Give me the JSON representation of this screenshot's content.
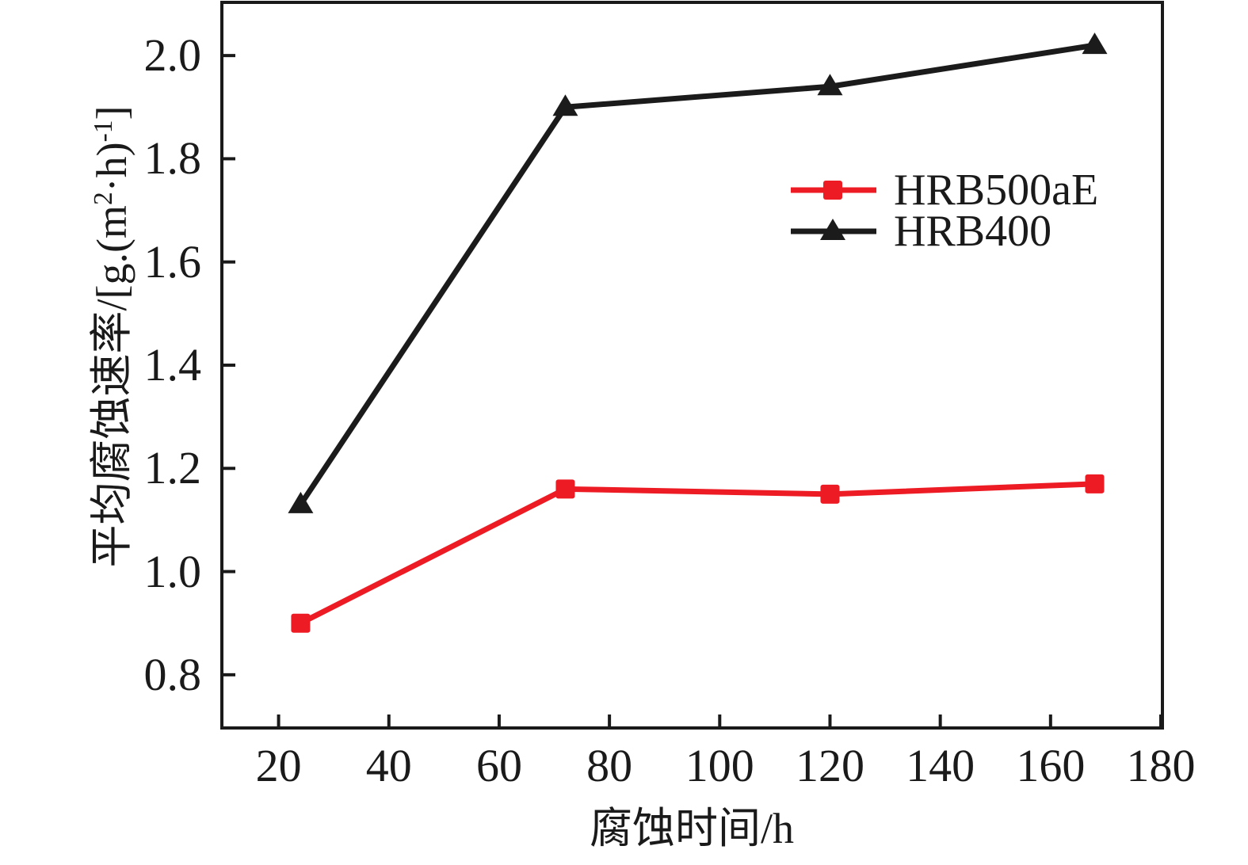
{
  "figure": {
    "background_color": "#ffffff",
    "axis_color": "#1a1a1a"
  },
  "chart_data": {
    "type": "line",
    "title": "",
    "xlabel": "腐蚀时间/h",
    "ylabel": "平均腐蚀速率/[g.(m²·h)⁻¹]",
    "ylabel_parts": [
      "平均腐蚀速率/[g.(m",
      "2",
      "·h)",
      "-1",
      "]"
    ],
    "x": [
      24,
      72,
      120,
      168
    ],
    "series": [
      {
        "name": "HRB500aE",
        "color": "#ed1c24",
        "marker": "square",
        "values": [
          0.9,
          1.16,
          1.15,
          1.17
        ]
      },
      {
        "name": "HRB400",
        "color": "#1b1b1b",
        "marker": "triangle",
        "values": [
          1.13,
          1.9,
          1.94,
          2.02
        ]
      }
    ],
    "xlim": [
      10,
      180
    ],
    "ylim": [
      0.7,
      2.1
    ],
    "x_ticks": {
      "values": [
        20,
        40,
        60,
        80,
        100,
        120,
        140,
        160,
        180
      ],
      "labels": [
        "20",
        "40",
        "60",
        "80",
        "100",
        "120",
        "140",
        "160",
        "180"
      ]
    },
    "y_ticks": {
      "values": [
        0.8,
        1.0,
        1.2,
        1.4,
        1.6,
        1.8,
        2.0
      ],
      "labels": [
        "0.8",
        "1.0",
        "1.2",
        "1.4",
        "1.6",
        "1.8",
        "2.0"
      ]
    },
    "grid": false,
    "legend_position": "inside-upper-right",
    "tick_direction": "in"
  },
  "legend": {
    "items": [
      {
        "label": "HRB500aE"
      },
      {
        "label": "HRB400"
      }
    ]
  }
}
